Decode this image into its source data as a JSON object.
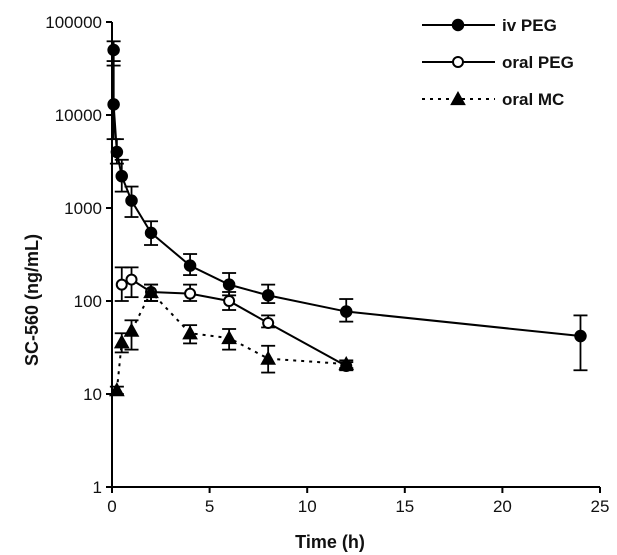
{
  "chart_data": {
    "type": "line",
    "title": "",
    "xlabel": "Time (h)",
    "ylabel": "SC-560 (ng/mL)",
    "xlim": [
      0,
      25
    ],
    "ylim": [
      1,
      100000
    ],
    "yscale": "log",
    "grid": false,
    "legend_position": "top-right",
    "x_ticks": [
      "0",
      "5",
      "10",
      "15",
      "20",
      "25"
    ],
    "y_ticks": [
      "1",
      "10",
      "100",
      "1000",
      "10000",
      "100000"
    ],
    "series": [
      {
        "name": "iv PEG",
        "line_style": "solid",
        "marker": "filled-circle",
        "x": [
          0.083,
          0.083,
          0.25,
          0.5,
          1,
          2,
          4,
          6,
          8,
          12,
          24
        ],
        "y": [
          50000,
          13000,
          4000,
          2200,
          1200,
          540,
          240,
          150,
          115,
          77,
          42
        ],
        "err": [
          [
            38000,
            62000
          ],
          [
            5500,
            34000
          ],
          [
            3000,
            5500
          ],
          [
            1500,
            3300
          ],
          [
            800,
            1700
          ],
          [
            400,
            720
          ],
          [
            190,
            320
          ],
          [
            115,
            200
          ],
          [
            95,
            150
          ],
          [
            60,
            105
          ],
          [
            18,
            70
          ]
        ]
      },
      {
        "name": "oral PEG",
        "line_style": "solid",
        "marker": "open-circle",
        "x": [
          0.5,
          1,
          2,
          4,
          6,
          8,
          12
        ],
        "y": [
          150,
          170,
          125,
          120,
          100,
          58,
          20
        ],
        "err": [
          [
            100,
            230
          ],
          [
            110,
            230
          ],
          [
            100,
            150
          ],
          [
            100,
            150
          ],
          [
            80,
            125
          ],
          [
            52,
            70
          ],
          [
            18,
            22
          ]
        ]
      },
      {
        "name": "oral MC",
        "line_style": "dotted",
        "marker": "filled-triangle",
        "x": [
          0.25,
          0.5,
          1,
          2,
          4,
          6,
          8,
          12
        ],
        "y": [
          11,
          36,
          48,
          125,
          45,
          40,
          24,
          21
        ],
        "err": [
          [
            10,
            12
          ],
          [
            28,
            45
          ],
          [
            30,
            62
          ],
          [
            100,
            150
          ],
          [
            35,
            55
          ],
          [
            30,
            50
          ],
          [
            17,
            33
          ],
          [
            19,
            23
          ]
        ]
      }
    ],
    "colors": {
      "line": "#000000",
      "marker_fill": "#000000",
      "marker_open_fill": "#ffffff"
    }
  }
}
